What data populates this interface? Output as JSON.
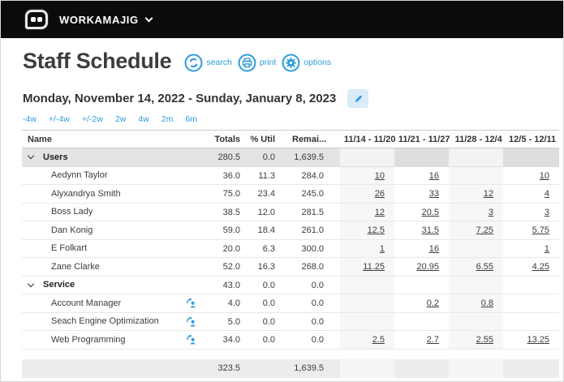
{
  "topbar": {
    "brand": "WORKAMAJIG"
  },
  "page": {
    "title": "Staff Schedule"
  },
  "actions": {
    "search_label": "search",
    "print_label": "print",
    "options_label": "options"
  },
  "date_range": "Monday, November 14, 2022 - Sunday, January 8, 2023",
  "quick_ranges": [
    "-4w",
    "+/-4w",
    "+/-2w",
    "2w",
    "4w",
    "2m",
    "6m"
  ],
  "table": {
    "columns": [
      "Name",
      "Totals",
      "% Util",
      "Remai...",
      "11/14 - 11/20",
      "11/21 - 11/27",
      "11/28 - 12/4",
      "12/5 - 12/11"
    ],
    "rows": [
      {
        "type": "group",
        "highlighted": true,
        "name": "Users",
        "totals": "280.5",
        "util": "0.0",
        "remaining": "1,639.5",
        "weeks": [
          "",
          "",
          "",
          ""
        ]
      },
      {
        "type": "user",
        "name": "Aedynn Taylor",
        "totals": "36.0",
        "util": "11.3",
        "remaining": "284.0",
        "weeks": [
          "10",
          "16",
          "",
          "10"
        ]
      },
      {
        "type": "user",
        "name": "Alyxandrya Smith",
        "totals": "75.0",
        "util": "23.4",
        "remaining": "245.0",
        "weeks": [
          "26",
          "33",
          "12",
          "4"
        ]
      },
      {
        "type": "user",
        "name": "Boss Lady",
        "totals": "38.5",
        "util": "12.0",
        "remaining": "281.5",
        "weeks": [
          "12",
          "20.5",
          "3",
          "3"
        ]
      },
      {
        "type": "user",
        "name": "Dan Konig",
        "totals": "59.0",
        "util": "18.4",
        "remaining": "261.0",
        "weeks": [
          "12.5",
          "31.5",
          "7.25",
          "5.75"
        ]
      },
      {
        "type": "user",
        "name": "E Folkart",
        "totals": "20.0",
        "util": "6.3",
        "remaining": "300.0",
        "weeks": [
          "1",
          "16",
          "",
          "1"
        ]
      },
      {
        "type": "user",
        "name": "Zane Clarke",
        "totals": "52.0",
        "util": "16.3",
        "remaining": "268.0",
        "weeks": [
          "11.25",
          "20.95",
          "6.55",
          "4.25"
        ]
      },
      {
        "type": "group",
        "highlighted": false,
        "name": "Service",
        "totals": "43.0",
        "util": "0.0",
        "remaining": "0.0",
        "weeks": [
          "",
          "",
          "",
          ""
        ]
      },
      {
        "type": "service",
        "name": "Account Manager",
        "totals": "4.0",
        "util": "0.0",
        "remaining": "0.0",
        "weeks": [
          "",
          "0.2",
          "0.8",
          ""
        ]
      },
      {
        "type": "service",
        "name": "Seach Engine Optimization",
        "totals": "5.0",
        "util": "0.0",
        "remaining": "0.0",
        "weeks": [
          "",
          "",
          "",
          ""
        ]
      },
      {
        "type": "service",
        "name": "Web Programming",
        "totals": "34.0",
        "util": "0.0",
        "remaining": "0.0",
        "weeks": [
          "2.5",
          "2.7",
          "2.55",
          "13.25"
        ]
      }
    ],
    "footer": {
      "totals": "323.5",
      "util": "",
      "remaining": "1,639.5",
      "weeks": [
        "",
        "",
        "",
        ""
      ]
    }
  },
  "colors": {
    "accent_blue": "#2d9cdb",
    "topbar_black": "#0b0b0b",
    "group_highlight_bg": "#e4e4e4",
    "footer_bg": "#ececec",
    "week_stripe": "#f7f7f7"
  }
}
